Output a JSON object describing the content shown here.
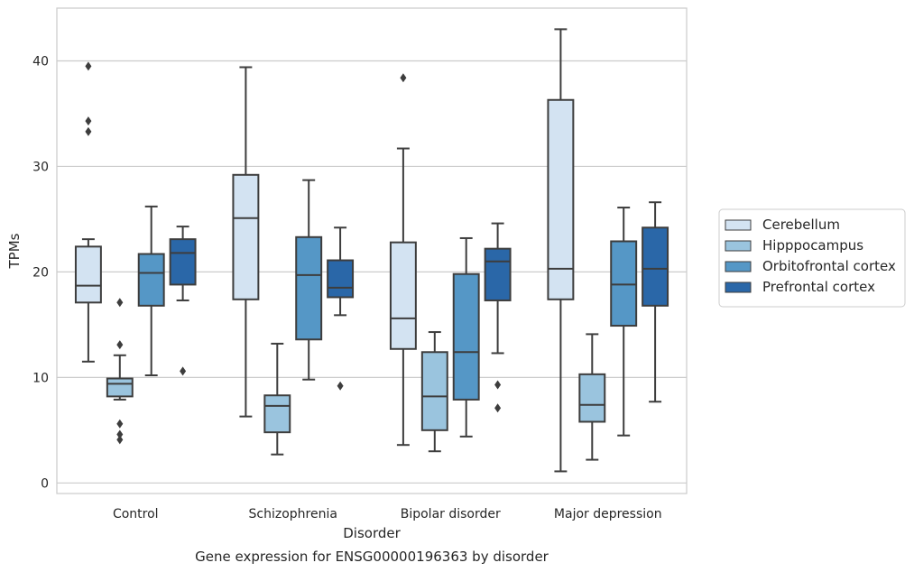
{
  "chart_data": {
    "type": "boxplot",
    "title": "Gene expression for ENSG00000196363 by disorder",
    "xlabel": "Disorder",
    "ylabel": "TPMs",
    "ylim": [
      -1,
      45
    ],
    "yticks": [
      0,
      10,
      20,
      30,
      40
    ],
    "grid": "horizontal",
    "legend_position": "right",
    "categories": [
      "Control",
      "Schizophrenia",
      "Bipolar disorder",
      "Major depression"
    ],
    "series": [
      {
        "name": "Cerebellum",
        "color": "#d3e3f2",
        "boxes": [
          {
            "whisker_low": 11.5,
            "q1": 17.1,
            "median": 18.7,
            "q3": 22.4,
            "whisker_high": 23.1,
            "outliers": [
              33.3,
              34.3,
              39.5
            ]
          },
          {
            "whisker_low": 6.3,
            "q1": 17.4,
            "median": 25.1,
            "q3": 29.2,
            "whisker_high": 39.4,
            "outliers": []
          },
          {
            "whisker_low": 3.6,
            "q1": 12.7,
            "median": 15.6,
            "q3": 22.8,
            "whisker_high": 31.7,
            "outliers": [
              38.4
            ]
          },
          {
            "whisker_low": 1.1,
            "q1": 17.4,
            "median": 20.3,
            "q3": 36.3,
            "whisker_high": 43.0,
            "outliers": []
          }
        ]
      },
      {
        "name": "Hipppocampus",
        "color": "#9ac4de",
        "boxes": [
          {
            "whisker_low": 7.9,
            "q1": 8.2,
            "median": 9.4,
            "q3": 9.9,
            "whisker_high": 12.1,
            "outliers": [
              4.1,
              4.6,
              5.6,
              13.1,
              17.1
            ]
          },
          {
            "whisker_low": 2.7,
            "q1": 4.8,
            "median": 7.3,
            "q3": 8.3,
            "whisker_high": 13.2,
            "outliers": []
          },
          {
            "whisker_low": 3.0,
            "q1": 5.0,
            "median": 8.2,
            "q3": 12.4,
            "whisker_high": 14.3,
            "outliers": []
          },
          {
            "whisker_low": 2.2,
            "q1": 5.8,
            "median": 7.4,
            "q3": 10.3,
            "whisker_high": 14.1,
            "outliers": []
          }
        ]
      },
      {
        "name": "Orbitofrontal cortex",
        "color": "#5597c6",
        "boxes": [
          {
            "whisker_low": 10.2,
            "q1": 16.8,
            "median": 19.9,
            "q3": 21.7,
            "whisker_high": 26.2,
            "outliers": []
          },
          {
            "whisker_low": 9.8,
            "q1": 13.6,
            "median": 19.7,
            "q3": 23.3,
            "whisker_high": 28.7,
            "outliers": []
          },
          {
            "whisker_low": 4.4,
            "q1": 7.9,
            "median": 12.4,
            "q3": 19.8,
            "whisker_high": 23.2,
            "outliers": []
          },
          {
            "whisker_low": 4.5,
            "q1": 14.9,
            "median": 18.8,
            "q3": 22.9,
            "whisker_high": 26.1,
            "outliers": []
          }
        ]
      },
      {
        "name": "Prefrontal cortex",
        "color": "#2a67a8",
        "boxes": [
          {
            "whisker_low": 17.3,
            "q1": 18.8,
            "median": 21.8,
            "q3": 23.1,
            "whisker_high": 24.3,
            "outliers": [
              10.6
            ]
          },
          {
            "whisker_low": 15.9,
            "q1": 17.6,
            "median": 18.5,
            "q3": 21.1,
            "whisker_high": 24.2,
            "outliers": [
              9.2
            ]
          },
          {
            "whisker_low": 12.3,
            "q1": 17.3,
            "median": 21.0,
            "q3": 22.2,
            "whisker_high": 24.6,
            "outliers": [
              7.1,
              9.3
            ]
          },
          {
            "whisker_low": 7.7,
            "q1": 16.8,
            "median": 20.3,
            "q3": 24.2,
            "whisker_high": 26.6,
            "outliers": []
          }
        ]
      }
    ]
  }
}
